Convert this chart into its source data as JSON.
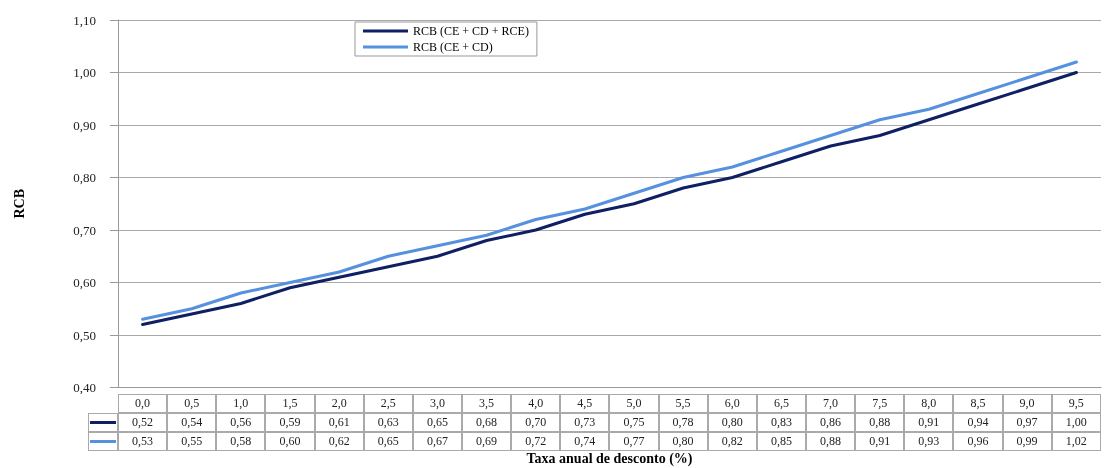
{
  "chart_data": {
    "type": "line",
    "ylabel": "RCB",
    "xlabel": "Taxa anual de desconto (%)",
    "categories": [
      "0,0",
      "0,5",
      "1,0",
      "1,5",
      "2,0",
      "2,5",
      "3,0",
      "3,5",
      "4,0",
      "4,5",
      "5,0",
      "5,5",
      "6,0",
      "6,5",
      "7,0",
      "7,5",
      "8,0",
      "8,5",
      "9,0",
      "9,5"
    ],
    "series": [
      {
        "name": "RCB (CE + CD + RCE)",
        "color": "#0f1f63",
        "values": [
          0.52,
          0.54,
          0.56,
          0.59,
          0.61,
          0.63,
          0.65,
          0.68,
          0.7,
          0.73,
          0.75,
          0.78,
          0.8,
          0.83,
          0.86,
          0.88,
          0.91,
          0.94,
          0.97,
          1.0
        ],
        "value_labels": [
          "0,52",
          "0,54",
          "0,56",
          "0,59",
          "0,61",
          "0,63",
          "0,65",
          "0,68",
          "0,70",
          "0,73",
          "0,75",
          "0,78",
          "0,80",
          "0,83",
          "0,86",
          "0,88",
          "0,91",
          "0,94",
          "0,97",
          "1,00"
        ]
      },
      {
        "name": "RCB (CE + CD)",
        "color": "#5591de",
        "values": [
          0.53,
          0.55,
          0.58,
          0.6,
          0.62,
          0.65,
          0.67,
          0.69,
          0.72,
          0.74,
          0.77,
          0.8,
          0.82,
          0.85,
          0.88,
          0.91,
          0.93,
          0.96,
          0.99,
          1.02
        ],
        "value_labels": [
          "0,53",
          "0,55",
          "0,58",
          "0,60",
          "0,62",
          "0,65",
          "0,67",
          "0,69",
          "0,72",
          "0,74",
          "0,77",
          "0,80",
          "0,82",
          "0,85",
          "0,88",
          "0,91",
          "0,93",
          "0,96",
          "0,99",
          "1,02"
        ]
      }
    ],
    "ylim": [
      0.4,
      1.1
    ],
    "yticks": [
      {
        "value": 0.4,
        "label": "0,40"
      },
      {
        "value": 0.5,
        "label": "0,50"
      },
      {
        "value": 0.6,
        "label": "0,60"
      },
      {
        "value": 0.7,
        "label": "0,70"
      },
      {
        "value": 0.8,
        "label": "0,80"
      },
      {
        "value": 0.9,
        "label": "0,90"
      },
      {
        "value": 1.0,
        "label": "1,00"
      },
      {
        "value": 1.1,
        "label": "1,10"
      }
    ],
    "grid": "y",
    "legend": "top",
    "marker": "none",
    "line_style": "solid"
  }
}
